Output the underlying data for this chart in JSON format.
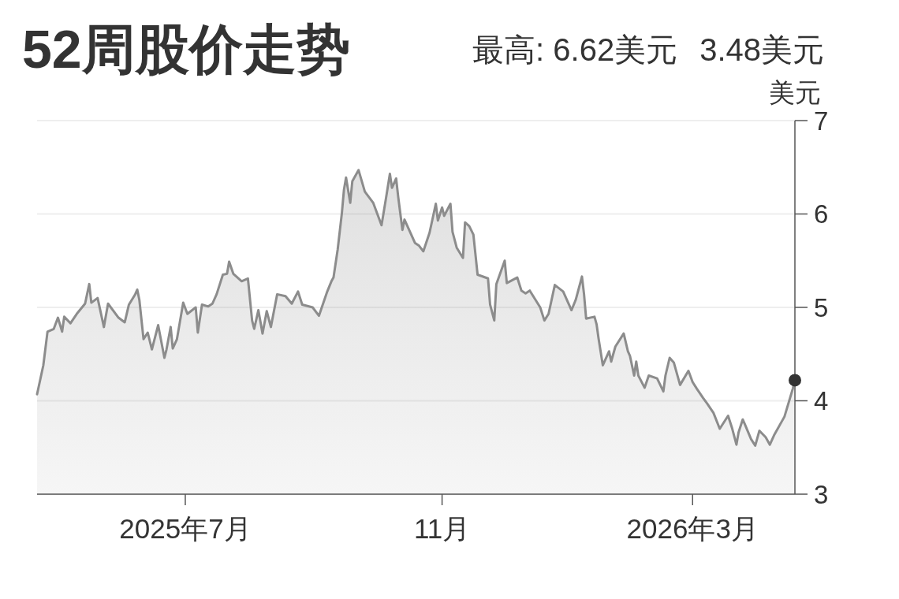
{
  "chart_data": {
    "type": "area",
    "title": "52周股价走势",
    "annotations": [
      "最高: 6.62美元",
      "3.48美元"
    ],
    "ylabel": "美元",
    "x": [
      "2025-04-21",
      "2025-04-24",
      "2025-04-26",
      "2025-04-29",
      "2025-05-01",
      "2025-05-03",
      "2025-05-04",
      "2025-05-07",
      "2025-05-10",
      "2025-05-14",
      "2025-05-16",
      "2025-05-17",
      "2025-05-20",
      "2025-05-23",
      "2025-05-25",
      "2025-05-30",
      "2025-06-02",
      "2025-06-04",
      "2025-06-07",
      "2025-06-08",
      "2025-06-09",
      "2025-06-11",
      "2025-06-13",
      "2025-06-15",
      "2025-06-18",
      "2025-06-21",
      "2025-06-22",
      "2025-06-24",
      "2025-06-25",
      "2025-06-27",
      "2025-06-30",
      "2025-07-02",
      "2025-07-06",
      "2025-07-07",
      "2025-07-09",
      "2025-07-12",
      "2025-07-14",
      "2025-07-16",
      "2025-07-19",
      "2025-07-21",
      "2025-07-22",
      "2025-07-24",
      "2025-07-28",
      "2025-07-31",
      "2025-08-02",
      "2025-08-03",
      "2025-08-05",
      "2025-08-07",
      "2025-08-09",
      "2025-08-11",
      "2025-08-14",
      "2025-08-18",
      "2025-08-21",
      "2025-08-24",
      "2025-08-26",
      "2025-08-31",
      "2025-09-03",
      "2025-09-07",
      "2025-09-09",
      "2025-09-10",
      "2025-09-12",
      "2025-09-14",
      "2025-09-15",
      "2025-09-16",
      "2025-09-18",
      "2025-09-19",
      "2025-09-22",
      "2025-09-25",
      "2025-09-29",
      "2025-10-03",
      "2025-10-05",
      "2025-10-07",
      "2025-10-08",
      "2025-10-10",
      "2025-10-11",
      "2025-10-13",
      "2025-10-14",
      "2025-10-19",
      "2025-10-21",
      "2025-10-23",
      "2025-10-26",
      "2025-10-29",
      "2025-10-30",
      "2025-11-01",
      "2025-11-02",
      "2025-11-05",
      "2025-11-06",
      "2025-11-08",
      "2025-11-11",
      "2025-11-12",
      "2025-11-14",
      "2025-11-16",
      "2025-11-18",
      "2025-11-23",
      "2025-11-24",
      "2025-11-26",
      "2025-11-27",
      "2025-12-01",
      "2025-12-02",
      "2025-12-07",
      "2025-12-09",
      "2025-12-11",
      "2025-12-13",
      "2025-12-18",
      "2025-12-20",
      "2025-12-22",
      "2025-12-25",
      "2025-12-29",
      "2026-01-02",
      "2026-01-04",
      "2026-01-07",
      "2026-01-08",
      "2026-01-09",
      "2026-01-13",
      "2026-01-14",
      "2026-01-15",
      "2026-01-17",
      "2026-01-20",
      "2026-01-21",
      "2026-01-23",
      "2026-01-27",
      "2026-01-29",
      "2026-01-30",
      "2026-02-01",
      "2026-02-02",
      "2026-02-03",
      "2026-02-06",
      "2026-02-08",
      "2026-02-12",
      "2026-02-15",
      "2026-02-16",
      "2026-02-18",
      "2026-02-20",
      "2026-02-23",
      "2026-02-27",
      "2026-03-01",
      "2026-03-03",
      "2026-03-06",
      "2026-03-08",
      "2026-03-11",
      "2026-03-14",
      "2026-03-18",
      "2026-03-20",
      "2026-03-22",
      "2026-03-23",
      "2026-03-25",
      "2026-03-26",
      "2026-03-29",
      "2026-03-31",
      "2026-04-02",
      "2026-04-05",
      "2026-04-07",
      "2026-04-09",
      "2026-04-14",
      "2026-04-16",
      "2026-04-18",
      "2026-04-19"
    ],
    "series": [
      {
        "color": "#8c8c8c",
        "values": [
          4.07,
          4.38,
          4.74,
          4.77,
          4.89,
          4.74,
          4.9,
          4.83,
          4.93,
          5.04,
          5.25,
          5.05,
          5.1,
          4.79,
          5.04,
          4.89,
          4.84,
          5.03,
          5.14,
          5.19,
          5.08,
          4.66,
          4.73,
          4.55,
          4.81,
          4.46,
          4.55,
          4.79,
          4.56,
          4.66,
          5.05,
          4.93,
          5.0,
          4.73,
          5.03,
          5.01,
          5.04,
          5.14,
          5.35,
          5.36,
          5.49,
          5.36,
          5.28,
          5.31,
          4.86,
          4.77,
          4.97,
          4.72,
          4.96,
          4.79,
          5.14,
          5.12,
          5.04,
          5.17,
          5.03,
          5.0,
          4.91,
          5.17,
          5.28,
          5.32,
          5.62,
          6.01,
          6.26,
          6.39,
          6.12,
          6.35,
          6.47,
          6.24,
          6.12,
          5.88,
          6.15,
          6.43,
          6.28,
          6.38,
          6.18,
          5.83,
          5.94,
          5.69,
          5.66,
          5.6,
          5.8,
          6.11,
          5.93,
          6.07,
          5.98,
          6.11,
          5.81,
          5.64,
          5.53,
          5.91,
          5.87,
          5.78,
          5.35,
          5.31,
          5.03,
          4.86,
          5.25,
          5.5,
          5.26,
          5.32,
          5.18,
          5.15,
          5.18,
          5.0,
          4.86,
          4.93,
          5.24,
          5.17,
          4.97,
          5.08,
          5.33,
          5.14,
          4.88,
          4.9,
          4.82,
          4.66,
          4.38,
          4.53,
          4.42,
          4.58,
          4.72,
          4.53,
          4.48,
          4.27,
          4.42,
          4.27,
          4.14,
          4.27,
          4.24,
          4.1,
          4.27,
          4.46,
          4.41,
          4.17,
          4.32,
          4.2,
          4.13,
          4.03,
          3.97,
          3.87,
          3.7,
          3.84,
          3.7,
          3.53,
          3.66,
          3.8,
          3.75,
          3.59,
          3.52,
          3.68,
          3.61,
          3.53,
          3.63,
          3.83,
          3.98,
          4.13,
          4.22
        ]
      },
      {
        "type": "scatter",
        "color": "#333333",
        "x": [
          "2026-04-19"
        ],
        "values": [
          4.22
        ]
      }
    ],
    "xlim": [
      "2025-04-21",
      "2026-04-19"
    ],
    "ylim": [
      3,
      7
    ],
    "xticks": [
      {
        "value": "2025-07-01",
        "label": "2025年7月"
      },
      {
        "value": "2025-11-01",
        "label": "11月"
      },
      {
        "value": "2026-03-01",
        "label": "2026年3月"
      }
    ],
    "yticks": [
      3,
      4,
      5,
      6,
      7
    ],
    "grid": "y"
  }
}
